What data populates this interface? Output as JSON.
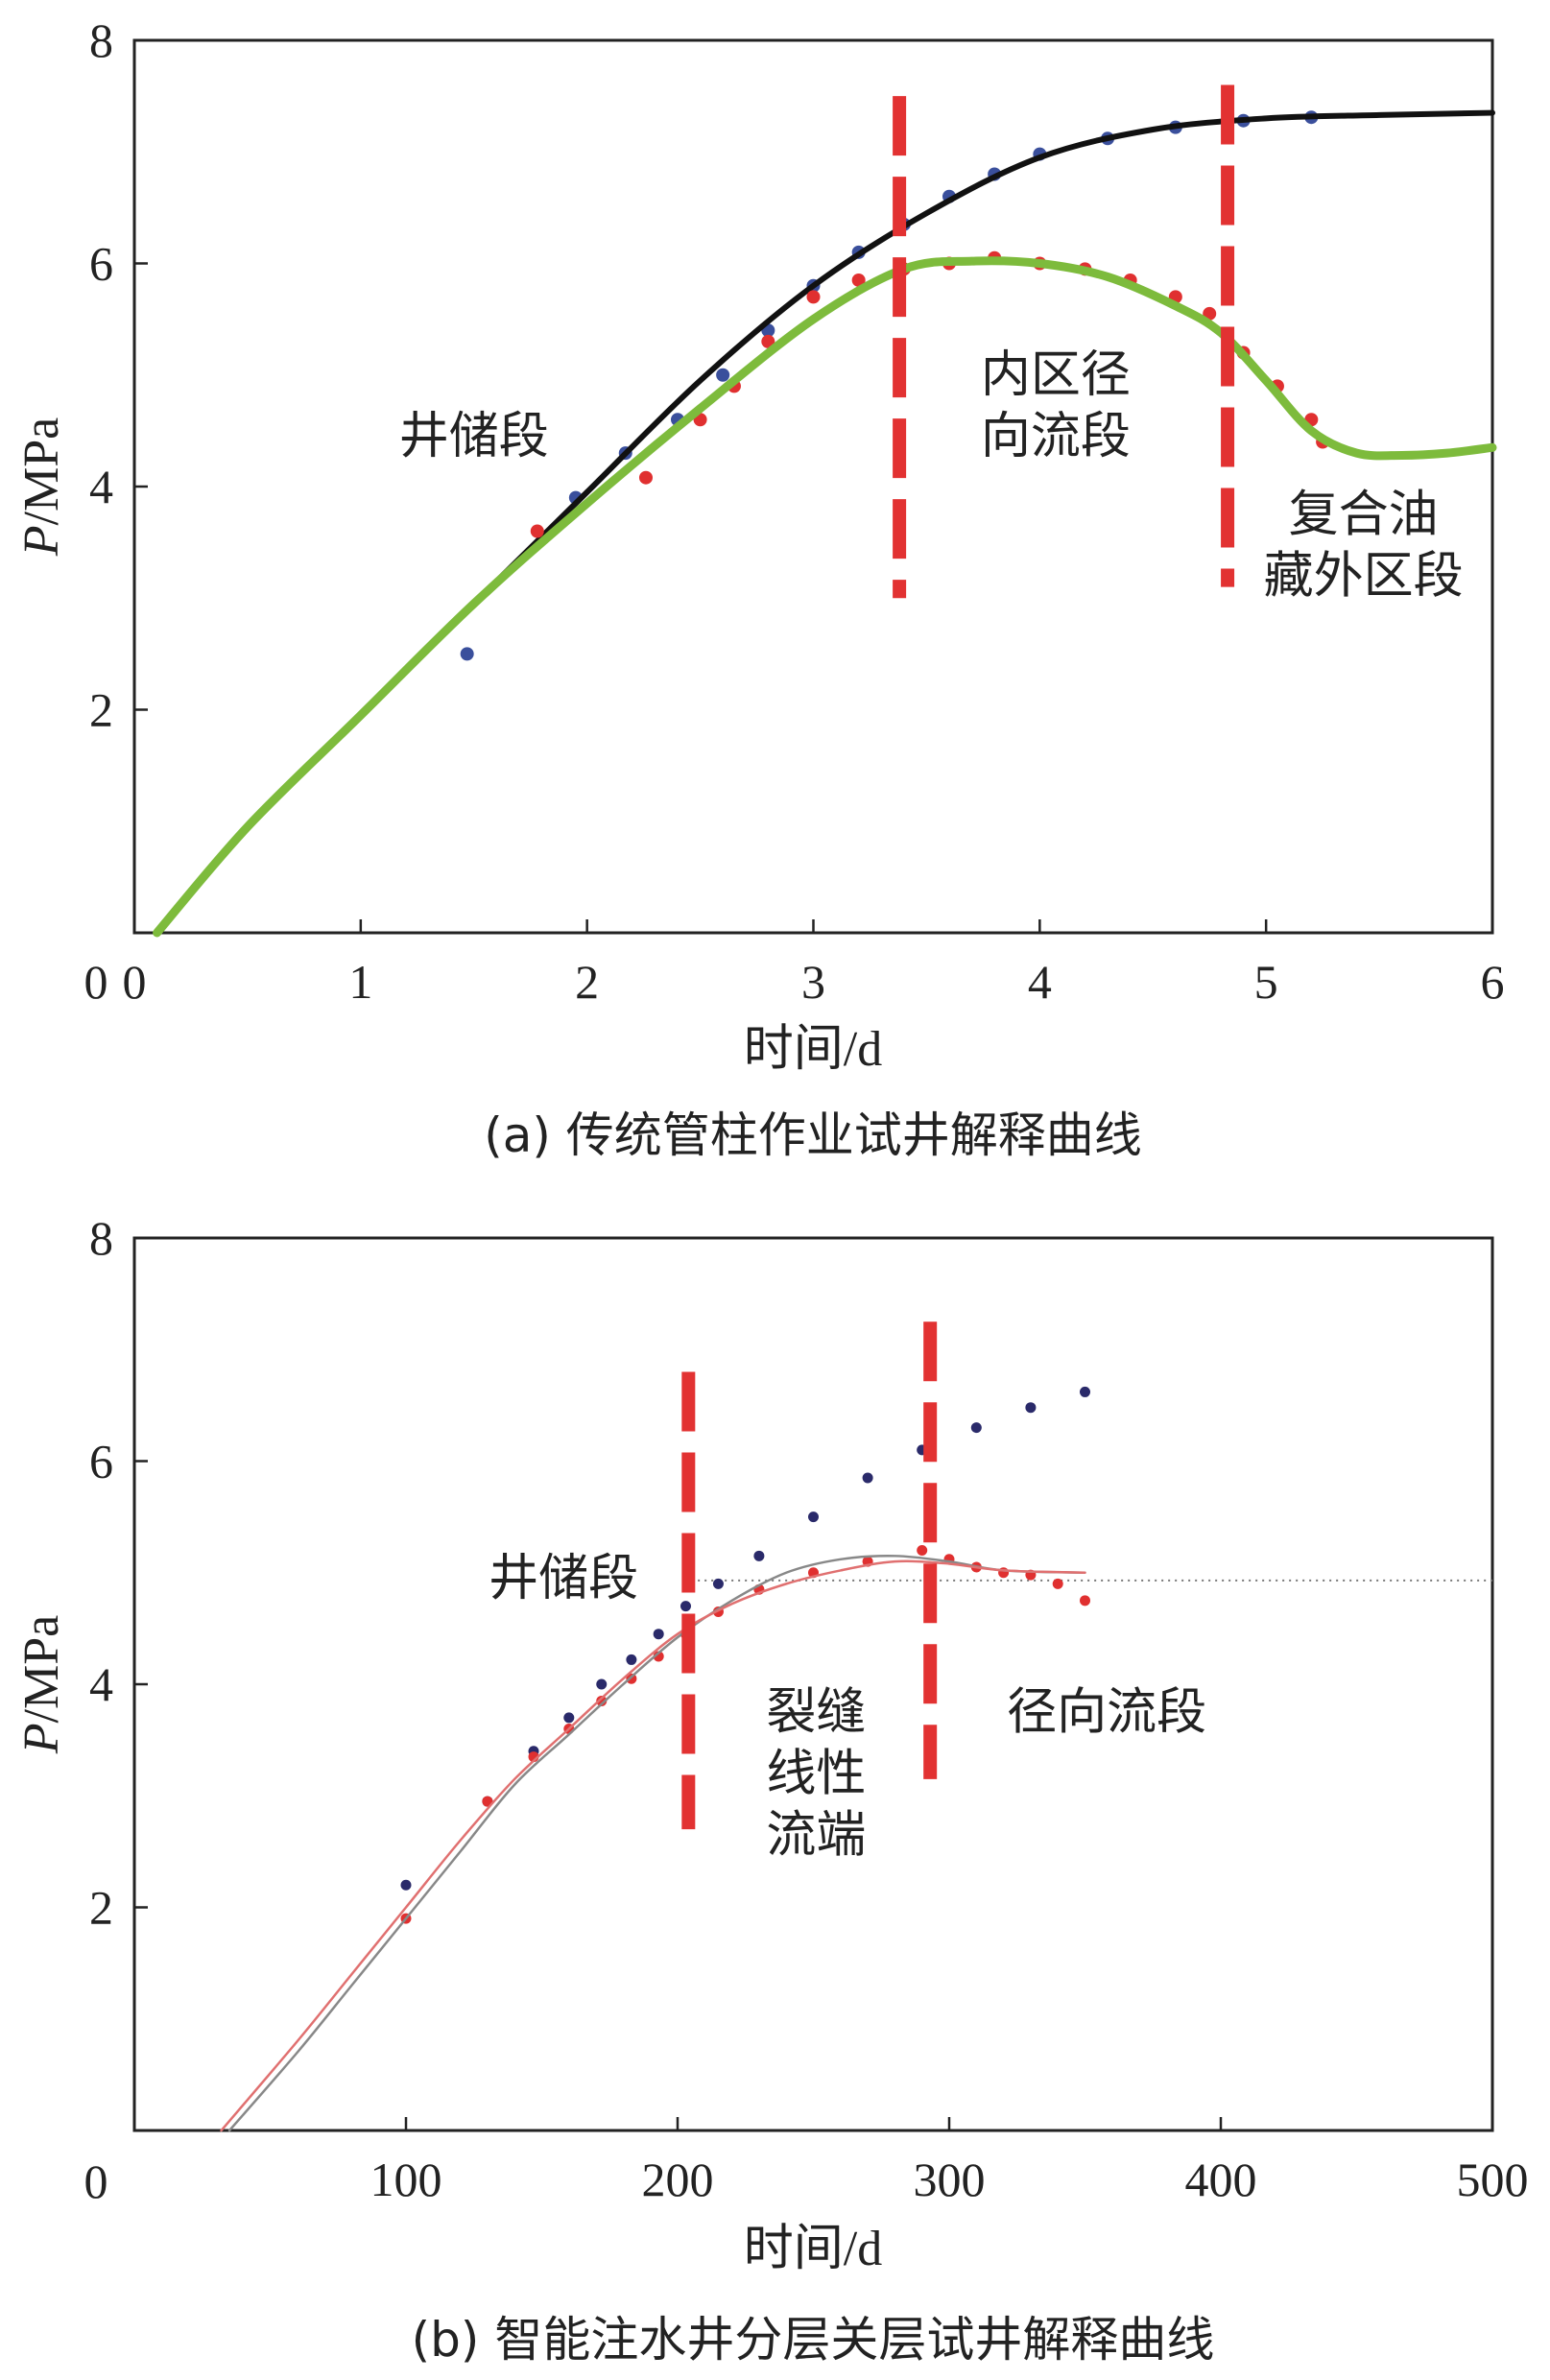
{
  "chart_data": [
    {
      "type": "scatter",
      "caption": "(a) 传统管柱作业试井解释曲线",
      "xlabel": "时间/d",
      "ylabel_italic": "P",
      "ylabel_rest": "/MPa",
      "xlim": [
        0,
        6
      ],
      "ylim": [
        0,
        8
      ],
      "xticks": [
        0,
        1,
        2,
        3,
        4,
        5,
        6
      ],
      "yticks": [
        2,
        4,
        6,
        8
      ],
      "origin_label": "0",
      "grid": false,
      "colors": {
        "blue": "#3a4f9c",
        "red": "#e03030",
        "black": "#111111",
        "green": "#7dbb3c"
      },
      "series": [
        {
          "role": "measured-upper",
          "style": "dots",
          "color": "blue",
          "x": [
            1.47,
            1.95,
            2.17,
            2.4,
            2.6,
            2.8,
            3.0,
            3.2,
            3.4,
            3.6,
            3.8,
            4.0,
            4.3,
            4.6,
            4.9,
            5.2
          ],
          "y": [
            2.5,
            3.9,
            4.3,
            4.6,
            5.0,
            5.4,
            5.8,
            6.1,
            6.35,
            6.6,
            6.8,
            6.98,
            7.12,
            7.22,
            7.28,
            7.31
          ]
        },
        {
          "role": "model-upper",
          "style": "line",
          "color": "black",
          "x": [
            0.1,
            0.5,
            1.0,
            1.5,
            2.0,
            2.5,
            3.0,
            3.5,
            4.0,
            4.5,
            5.0,
            5.5,
            6.0
          ],
          "y": [
            0.0,
            0.95,
            1.95,
            2.95,
            3.95,
            4.95,
            5.8,
            6.45,
            6.95,
            7.2,
            7.3,
            7.33,
            7.35
          ]
        },
        {
          "role": "measured-lower",
          "style": "dots",
          "color": "red",
          "x": [
            1.78,
            2.26,
            2.5,
            2.65,
            2.8,
            3.0,
            3.2,
            3.4,
            3.6,
            3.8,
            4.0,
            4.2,
            4.4,
            4.6,
            4.75,
            4.9,
            5.05,
            5.2,
            5.25
          ],
          "y": [
            3.6,
            4.08,
            4.6,
            4.9,
            5.3,
            5.7,
            5.85,
            5.95,
            6.0,
            6.05,
            6.0,
            5.95,
            5.85,
            5.7,
            5.55,
            5.2,
            4.9,
            4.6,
            4.4
          ]
        },
        {
          "role": "model-lower",
          "style": "line",
          "color": "green",
          "x": [
            0.1,
            0.5,
            1.0,
            1.5,
            2.0,
            2.5,
            3.0,
            3.4,
            3.7,
            4.0,
            4.3,
            4.6,
            4.8,
            5.0,
            5.2,
            5.4,
            5.6,
            5.8,
            6.0
          ],
          "y": [
            0.0,
            0.95,
            1.95,
            2.95,
            3.85,
            4.7,
            5.5,
            5.95,
            6.02,
            6.0,
            5.88,
            5.62,
            5.38,
            4.95,
            4.5,
            4.3,
            4.28,
            4.3,
            4.35
          ]
        }
      ],
      "vlines": [
        {
          "x": 3.38,
          "y0": 3.0,
          "y1": 7.5
        },
        {
          "x": 4.83,
          "y0": 3.1,
          "y1": 7.6
        }
      ],
      "annotations": [
        {
          "lines": [
            "井储段"
          ],
          "x": 1.5,
          "y": 4.3,
          "align": "middle"
        },
        {
          "lines": [
            "内区径",
            "向流段"
          ],
          "x": 4.07,
          "y": 4.85,
          "align": "middle"
        },
        {
          "lines": [
            "复合油",
            "藏外区段"
          ],
          "x": 5.43,
          "y": 3.6,
          "align": "middle"
        }
      ]
    },
    {
      "type": "scatter",
      "caption": "(b) 智能注水井分层关层试井解释曲线",
      "xlabel": "时间/d",
      "ylabel_italic": "P",
      "ylabel_rest": "/MPa",
      "xlim": [
        0,
        500
      ],
      "ylim": [
        0,
        8
      ],
      "xticks": [
        100,
        200,
        300,
        400,
        500
      ],
      "yticks": [
        2,
        4,
        6,
        8
      ],
      "origin_label": "0",
      "grid": false,
      "colors": {
        "navy": "#2a2a6a",
        "red": "#e03030",
        "pink": "#e07070",
        "gray": "#888888"
      },
      "series": [
        {
          "role": "measured-upper",
          "style": "dots",
          "color": "navy",
          "x": [
            100,
            130,
            147,
            160,
            172,
            183,
            193,
            203,
            215,
            230,
            250,
            270,
            290,
            310,
            330,
            350
          ],
          "y": [
            2.2,
            2.95,
            3.4,
            3.7,
            4.0,
            4.22,
            4.45,
            4.7,
            4.9,
            5.15,
            5.5,
            5.85,
            6.1,
            6.3,
            6.48,
            6.62
          ]
        },
        {
          "role": "measured-lower",
          "style": "dots",
          "color": "red",
          "x": [
            100,
            130,
            147,
            160,
            172,
            183,
            193,
            203,
            215,
            230,
            250,
            270,
            290,
            300,
            310,
            320,
            330,
            340,
            350
          ],
          "y": [
            1.9,
            2.95,
            3.35,
            3.6,
            3.85,
            4.05,
            4.25,
            4.45,
            4.65,
            4.85,
            5.0,
            5.1,
            5.2,
            5.12,
            5.05,
            5.0,
            4.98,
            4.9,
            4.75
          ]
        },
        {
          "role": "model-gray",
          "style": "line",
          "color": "gray",
          "x": [
            35,
            60,
            80,
            100,
            120,
            140,
            160,
            180,
            200,
            220,
            240,
            260,
            280,
            300,
            320,
            350
          ],
          "y": [
            0.0,
            0.7,
            1.3,
            1.9,
            2.5,
            3.1,
            3.55,
            4.0,
            4.42,
            4.75,
            5.0,
            5.12,
            5.15,
            5.1,
            5.02,
            5.0
          ]
        },
        {
          "role": "model-red",
          "style": "line",
          "color": "pink",
          "x": [
            32,
            60,
            80,
            100,
            120,
            140,
            160,
            180,
            200,
            220,
            240,
            260,
            280,
            300,
            320,
            350
          ],
          "y": [
            0.0,
            0.8,
            1.4,
            2.0,
            2.6,
            3.15,
            3.6,
            4.05,
            4.45,
            4.72,
            4.9,
            5.02,
            5.1,
            5.08,
            5.02,
            5.0
          ]
        }
      ],
      "hline_dotted": {
        "y": 4.93,
        "x0": 205,
        "x1": 500
      },
      "vlines": [
        {
          "x": 204,
          "y0": 2.7,
          "y1": 6.8
        },
        {
          "x": 293,
          "y0": 3.15,
          "y1": 7.25
        }
      ],
      "annotations": [
        {
          "lines": [
            "井储段"
          ],
          "x": 158,
          "y": 4.8,
          "align": "middle"
        },
        {
          "lines": [
            "裂缝",
            "线性",
            "流端"
          ],
          "x": 251,
          "y": 3.6,
          "align": "middle"
        },
        {
          "lines": [
            "径向流段"
          ],
          "x": 358,
          "y": 3.6,
          "align": "middle"
        }
      ]
    }
  ]
}
